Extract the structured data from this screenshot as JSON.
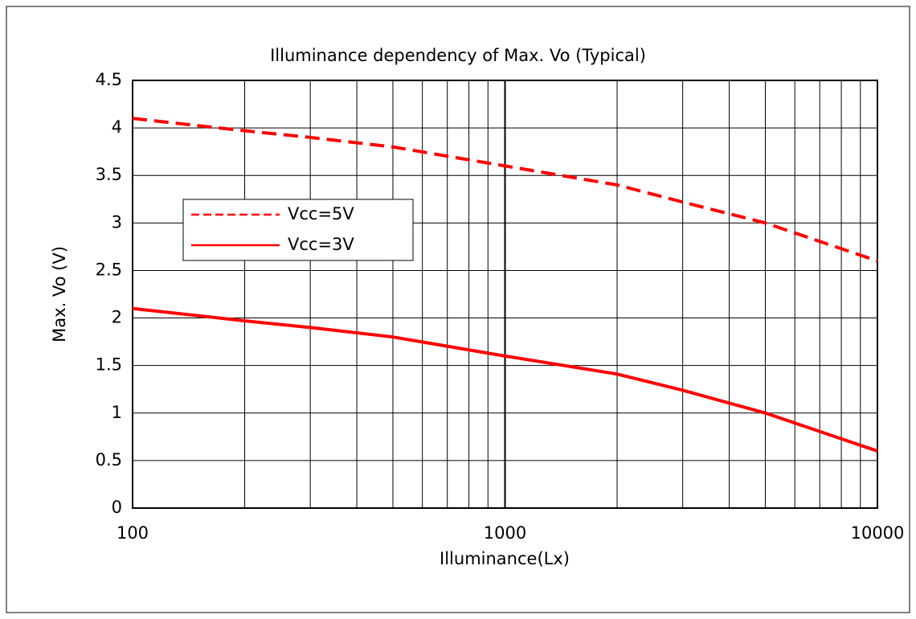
{
  "chart_data": {
    "type": "line",
    "title": "Illuminance dependency of Max. Vo (Typical)",
    "x_label": "Illuminance(Lx)",
    "y_label": "Max. Vo (V)",
    "x": [
      100,
      200,
      300,
      500,
      1000,
      2000,
      3000,
      5000,
      10000
    ],
    "series": [
      {
        "name": "Vcc=5V",
        "color": "#ff0000",
        "dash": true,
        "values": [
          4.1,
          3.97,
          3.9,
          3.8,
          3.6,
          3.4,
          3.22,
          3.0,
          2.6
        ]
      },
      {
        "name": "Vcc=3V",
        "color": "#ff0000",
        "dash": false,
        "values": [
          2.1,
          1.97,
          1.9,
          1.8,
          1.6,
          1.41,
          1.24,
          1.0,
          0.6
        ]
      }
    ],
    "xlog": true,
    "xlim": [
      100,
      10000
    ],
    "xticks": [
      100,
      1000,
      10000
    ],
    "xminorticks": [
      200,
      300,
      400,
      500,
      600,
      700,
      800,
      900,
      2000,
      3000,
      4000,
      5000,
      6000,
      7000,
      8000,
      9000
    ],
    "ylim": [
      0,
      4.5
    ],
    "yticks": [
      0,
      0.5,
      1,
      1.5,
      2,
      2.5,
      3,
      3.5,
      4,
      4.5
    ],
    "grid": true,
    "legend": "upper left"
  }
}
